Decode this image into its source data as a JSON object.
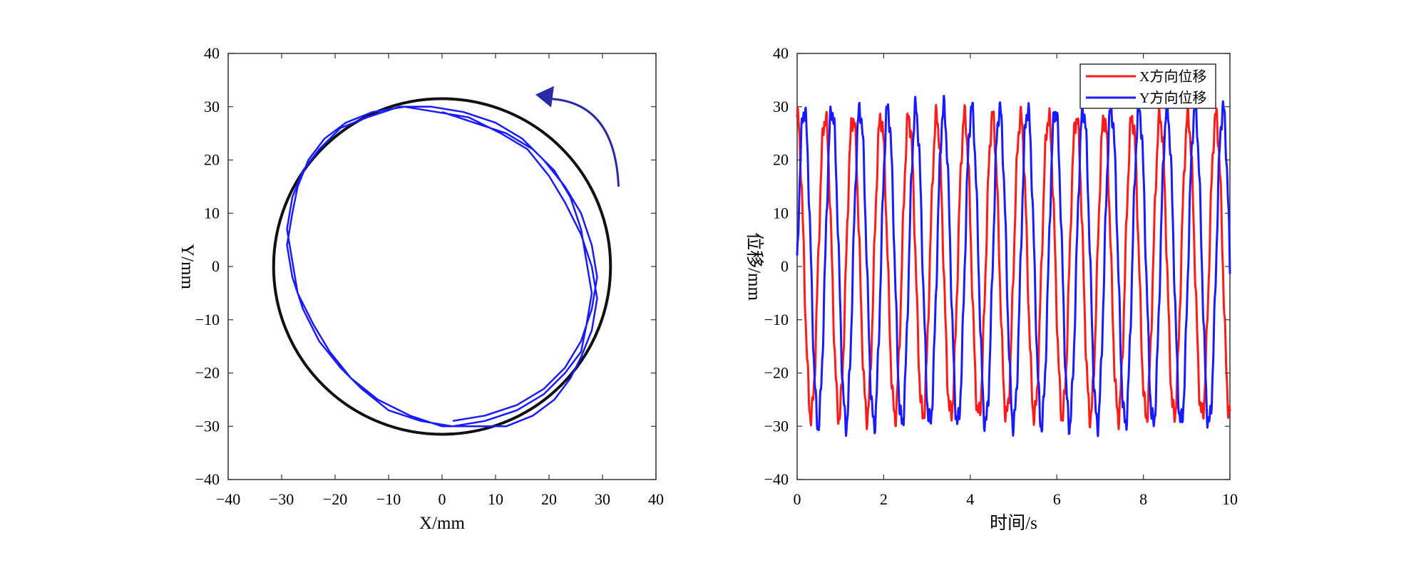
{
  "chart_data": [
    {
      "type": "line",
      "xlabel": "X/mm",
      "ylabel": "Y/mm",
      "xlim": [
        -40,
        40
      ],
      "ylim": [
        -40,
        40
      ],
      "x_ticks": [
        "−40",
        "−30",
        "−20",
        "−10",
        "0",
        "10",
        "20",
        "30",
        "40"
      ],
      "y_ticks": [
        "40",
        "30",
        "20",
        "10",
        "0",
        "−10",
        "−20",
        "−30",
        "−40"
      ],
      "grid": false,
      "series": [
        {
          "color": "#1a1aff",
          "x": [
            0,
            6,
            12,
            17,
            21,
            24,
            26,
            27,
            28,
            27,
            26,
            23,
            19,
            14,
            8,
            2,
            -4,
            -10,
            -15,
            -19,
            -23,
            -26,
            -28,
            -29,
            -28,
            -27,
            -25,
            -22,
            -18,
            -13,
            -7,
            -1,
            5,
            11,
            16,
            20,
            23,
            26,
            28,
            29,
            28,
            26,
            24,
            21,
            17,
            12,
            6,
            0,
            -6,
            -12,
            -17,
            -21,
            -24,
            -27,
            -28,
            -29,
            -28,
            -26,
            -23,
            -19,
            -14,
            -8,
            -2,
            4,
            10,
            15,
            19,
            23,
            26,
            28,
            29,
            28,
            26,
            23,
            19,
            14,
            8,
            2
          ],
          "y": [
            29,
            27,
            25,
            22,
            18,
            13,
            7,
            1,
            -5,
            -11,
            -16,
            -20,
            -24,
            -27,
            -29,
            -30,
            -29,
            -27,
            -23,
            -19,
            -14,
            -8,
            -2,
            4,
            10,
            15,
            20,
            24,
            27,
            29,
            30,
            29,
            28,
            25,
            22,
            17,
            12,
            6,
            0,
            -6,
            -12,
            -17,
            -21,
            -25,
            -28,
            -30,
            -30,
            -30,
            -28,
            -25,
            -21,
            -16,
            -11,
            -5,
            1,
            7,
            13,
            18,
            22,
            26,
            28,
            30,
            30,
            29,
            27,
            24,
            20,
            15,
            10,
            4,
            -2,
            -8,
            -14,
            -19,
            -23,
            -26,
            -28,
            -29
          ]
        }
      ],
      "reference_circle": {
        "radius": 31.5,
        "color": "#111111"
      },
      "annotation": {
        "type": "arrow",
        "direction": "counterclockwise",
        "color": "#2a2aa8"
      }
    },
    {
      "type": "line",
      "xlabel": "时间/s",
      "ylabel": "位移/mm",
      "xlim": [
        0,
        10
      ],
      "ylim": [
        -40,
        40
      ],
      "x_ticks": [
        "0",
        "2",
        "4",
        "6",
        "8",
        "10"
      ],
      "y_ticks": [
        "40",
        "30",
        "20",
        "10",
        "0",
        "−10",
        "−20",
        "−30",
        "−40"
      ],
      "grid": false,
      "legend": {
        "placement": "top-right"
      },
      "series": [
        {
          "name": "X方向位移",
          "color": "#ff1a1a",
          "amplitude": 28,
          "frequency_hz": 1.55,
          "phase_deg": 90
        },
        {
          "name": "Y方向位移",
          "color": "#1a1aff",
          "amplitude": 29.5,
          "frequency_hz": 1.55,
          "phase_deg": 0
        }
      ]
    }
  ]
}
